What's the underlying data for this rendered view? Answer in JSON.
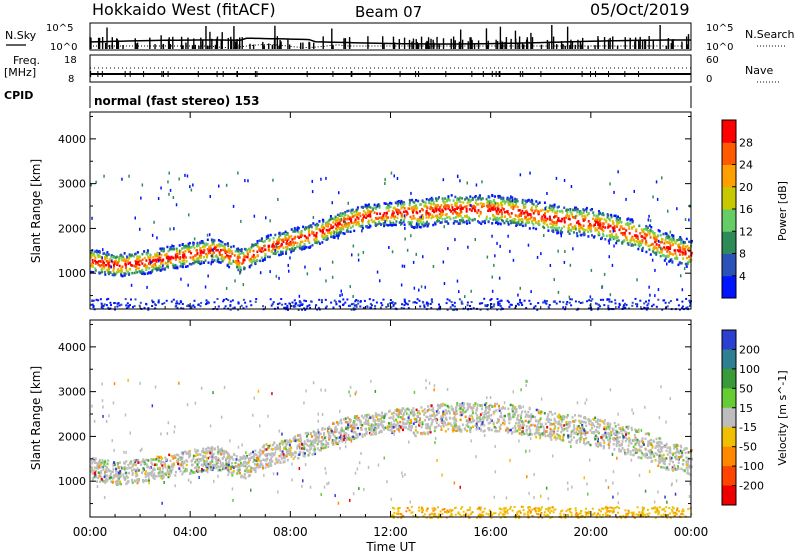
{
  "header": {
    "radar": "Hokkaido West (fitACF)",
    "beam": "Beam 07",
    "date": "05/Oct/2019"
  },
  "noise_panel": {
    "left_label": "N.Sky",
    "right_label": "N.Search",
    "left_ticks": [
      "10^5",
      "10^0"
    ],
    "right_ticks": [
      "10^5",
      "10^0"
    ]
  },
  "freq_panel": {
    "left_label_line1": "Freq.",
    "left_label_line2": "[MHz]",
    "right_label": "Nave",
    "left_ticks": [
      "18",
      "8"
    ],
    "right_ticks": [
      "60",
      "0"
    ]
  },
  "cpid_panel": {
    "label": "CPID",
    "mode_text": "normal (fast stereo) 153"
  },
  "chart_data": [
    {
      "type": "heatmap",
      "title": "Power",
      "ylabel": "Slant Range [km]",
      "xlabel": "",
      "ylim": [
        200,
        4600
      ],
      "xlim_hours": [
        0,
        24
      ],
      "yticks": [
        "1000",
        "2000",
        "3000",
        "4000"
      ],
      "colorbar": {
        "label": "Power [dB]",
        "ticks": [
          "4",
          "8",
          "12",
          "16",
          "20",
          "24",
          "28"
        ],
        "colors": [
          "#0015ff",
          "#2a52b8",
          "#2e8b57",
          "#66cc66",
          "#c8c800",
          "#ffa000",
          "#ff5a00",
          "#ff0000"
        ]
      },
      "echo_band": {
        "time_hours": [
          0,
          1,
          2,
          3,
          4,
          5,
          6,
          7,
          8,
          9,
          10,
          11,
          12,
          12.5,
          13,
          14,
          15,
          16,
          17,
          18,
          19,
          20,
          21,
          22,
          23,
          24
        ],
        "center_km": [
          1300,
          1200,
          1250,
          1350,
          1450,
          1550,
          1300,
          1600,
          1750,
          1900,
          2150,
          2300,
          2350,
          2400,
          2350,
          2450,
          2450,
          2450,
          2400,
          2300,
          2200,
          2150,
          2000,
          1850,
          1600,
          1450
        ]
      }
    },
    {
      "type": "heatmap",
      "title": "Velocity",
      "ylabel": "Slant Range [km]",
      "xlabel": "Time UT",
      "ylim": [
        200,
        4600
      ],
      "xlim_hours": [
        0,
        24
      ],
      "yticks": [
        "1000",
        "2000",
        "3000",
        "4000"
      ],
      "xticks": [
        "00:00",
        "04:00",
        "08:00",
        "12:00",
        "16:00",
        "20:00",
        "00:00"
      ],
      "colorbar": {
        "label": "Velocity [m s^-1]",
        "ticks": [
          "200",
          "100",
          "50",
          "15",
          "-15",
          "-50",
          "-100",
          "-200"
        ],
        "colors": [
          "#2b3fd0",
          "#2e7f8f",
          "#3a9a3a",
          "#66cc33",
          "#bdbdbd",
          "#f0c000",
          "#ff8800",
          "#ff4400",
          "#ee0000"
        ]
      }
    }
  ],
  "colors": {
    "power_scale": [
      "#0015ff",
      "#2a52b8",
      "#2e8b57",
      "#66cc66",
      "#c8c800",
      "#ffa000",
      "#ff5a00",
      "#ff0000"
    ],
    "velocity_scale": [
      "#2b3fd0",
      "#2e7f8f",
      "#3a9a3a",
      "#66cc33",
      "#bdbdbd",
      "#f0c000",
      "#ff8800",
      "#ff4400",
      "#ee0000"
    ]
  }
}
